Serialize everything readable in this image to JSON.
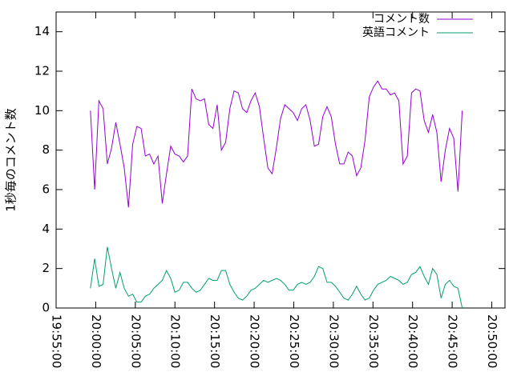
{
  "chart_data": {
    "type": "line",
    "y_label": "1秒毎のコメント数",
    "x": [
      "19:59:20",
      "19:59:52",
      "20:00:24",
      "20:00:56",
      "20:01:28",
      "20:02:00",
      "20:02:32",
      "20:03:04",
      "20:03:36",
      "20:04:08",
      "20:04:40",
      "20:05:12",
      "20:05:44",
      "20:06:16",
      "20:06:48",
      "20:07:20",
      "20:07:52",
      "20:08:24",
      "20:08:56",
      "20:09:28",
      "20:10:00",
      "20:10:32",
      "20:11:04",
      "20:11:36",
      "20:12:08",
      "20:12:40",
      "20:13:12",
      "20:13:44",
      "20:14:16",
      "20:14:48",
      "20:15:20",
      "20:15:52",
      "20:16:24",
      "20:16:56",
      "20:17:28",
      "20:18:00",
      "20:18:32",
      "20:19:04",
      "20:19:36",
      "20:20:08",
      "20:20:40",
      "20:21:12",
      "20:21:44",
      "20:22:16",
      "20:22:48",
      "20:23:20",
      "20:23:52",
      "20:24:24",
      "20:24:56",
      "20:25:28",
      "20:26:00",
      "20:26:32",
      "20:27:04",
      "20:27:36",
      "20:28:08",
      "20:28:40",
      "20:29:12",
      "20:29:44",
      "20:30:16",
      "20:30:48",
      "20:31:20",
      "20:31:52",
      "20:32:24",
      "20:32:56",
      "20:33:28",
      "20:34:00",
      "20:34:32",
      "20:35:04",
      "20:35:36",
      "20:36:08",
      "20:36:40",
      "20:37:12",
      "20:37:44",
      "20:38:16",
      "20:38:48",
      "20:39:20",
      "20:39:52",
      "20:40:24",
      "20:40:56",
      "20:41:28",
      "20:42:00",
      "20:42:32",
      "20:43:04",
      "20:43:36",
      "20:44:08",
      "20:44:40",
      "20:45:12",
      "20:45:44",
      "20:46:16"
    ],
    "series": [
      {
        "name": "コメント数",
        "color": "#9400d3",
        "values": [
          10.0,
          6.0,
          10.5,
          10.1,
          7.3,
          8.1,
          9.4,
          8.3,
          7.1,
          5.1,
          8.3,
          9.2,
          9.1,
          7.7,
          7.8,
          7.3,
          7.7,
          5.3,
          6.8,
          8.2,
          7.8,
          7.7,
          7.4,
          7.7,
          11.1,
          10.6,
          10.5,
          10.6,
          9.3,
          9.1,
          10.3,
          8.0,
          8.4,
          10.1,
          11.0,
          10.9,
          10.1,
          9.9,
          10.5,
          10.9,
          10.2,
          8.6,
          7.1,
          6.8,
          8.1,
          9.6,
          10.3,
          10.1,
          9.9,
          9.5,
          10.1,
          10.3,
          9.5,
          8.2,
          8.3,
          9.7,
          10.2,
          9.7,
          8.3,
          7.3,
          7.3,
          7.9,
          7.7,
          6.7,
          7.1,
          8.5,
          10.7,
          11.2,
          11.5,
          11.1,
          11.1,
          10.8,
          10.9,
          10.5,
          7.3,
          7.7,
          10.9,
          11.1,
          11.0,
          9.5,
          8.9,
          9.8,
          8.9,
          6.4,
          8.0,
          9.1,
          8.6,
          5.9,
          10.0
        ]
      },
      {
        "name": "英語コメント",
        "color": "#009e73",
        "values": [
          1.0,
          2.5,
          1.1,
          1.2,
          3.1,
          2.0,
          1.0,
          1.8,
          1.0,
          0.6,
          0.7,
          0.3,
          0.3,
          0.6,
          0.7,
          1.0,
          1.2,
          1.4,
          1.9,
          1.5,
          0.8,
          0.9,
          1.3,
          1.3,
          1.0,
          0.8,
          0.9,
          1.2,
          1.5,
          1.4,
          1.4,
          1.9,
          1.9,
          1.2,
          0.8,
          0.5,
          0.4,
          0.6,
          0.9,
          1.0,
          1.2,
          1.4,
          1.3,
          1.4,
          1.5,
          1.4,
          1.2,
          0.9,
          0.9,
          1.2,
          1.3,
          1.2,
          1.3,
          1.6,
          2.1,
          2.0,
          1.3,
          1.3,
          1.1,
          0.8,
          0.5,
          0.4,
          0.7,
          1.1,
          0.7,
          0.4,
          0.5,
          0.9,
          1.2,
          1.3,
          1.4,
          1.6,
          1.5,
          1.4,
          1.2,
          1.3,
          1.7,
          1.8,
          2.1,
          1.6,
          1.2,
          2.0,
          1.7,
          0.5,
          1.2,
          1.4,
          1.1,
          1.0,
          0.0
        ]
      }
    ],
    "xlim": [
      "19:55:00",
      "20:51:40"
    ],
    "xticks": [
      "19:55:00",
      "20:00:00",
      "20:05:00",
      "20:10:00",
      "20:15:00",
      "20:20:00",
      "20:25:00",
      "20:30:00",
      "20:35:00",
      "20:40:00",
      "20:45:00",
      "20:50:00"
    ],
    "ylim": [
      0,
      15
    ],
    "yticks": [
      0,
      2,
      4,
      6,
      8,
      10,
      12,
      14
    ],
    "legend": "top-right"
  }
}
